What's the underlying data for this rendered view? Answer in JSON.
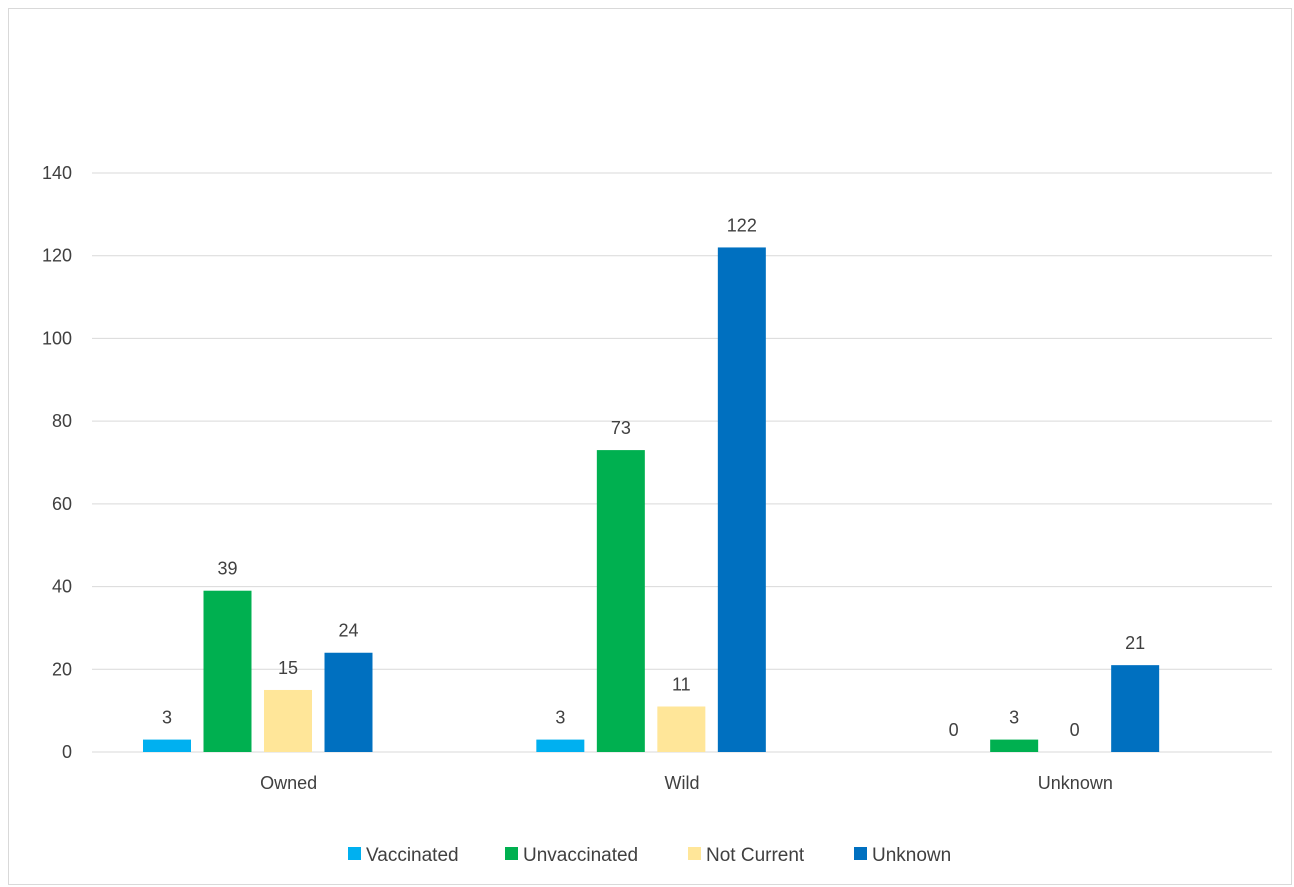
{
  "chart_data": {
    "type": "bar",
    "title": "",
    "xlabel": "",
    "ylabel": "",
    "categories": [
      "Owned",
      "Wild",
      "Unknown"
    ],
    "series": [
      {
        "name": "Vaccinated",
        "color": "#00b0f0",
        "values": [
          3,
          3,
          0
        ]
      },
      {
        "name": "Unvaccinated",
        "color": "#00b050",
        "values": [
          39,
          73,
          3
        ]
      },
      {
        "name": "Not Current",
        "color": "#ffe699",
        "values": [
          15,
          11,
          0
        ]
      },
      {
        "name": "Unknown",
        "color": "#0070c0",
        "values": [
          24,
          122,
          21
        ]
      }
    ],
    "ylim": [
      0,
      140
    ],
    "yticks": [
      0,
      20,
      40,
      60,
      80,
      100,
      120,
      140
    ],
    "grid": true,
    "data_labels": true,
    "legend_position": "bottom"
  }
}
